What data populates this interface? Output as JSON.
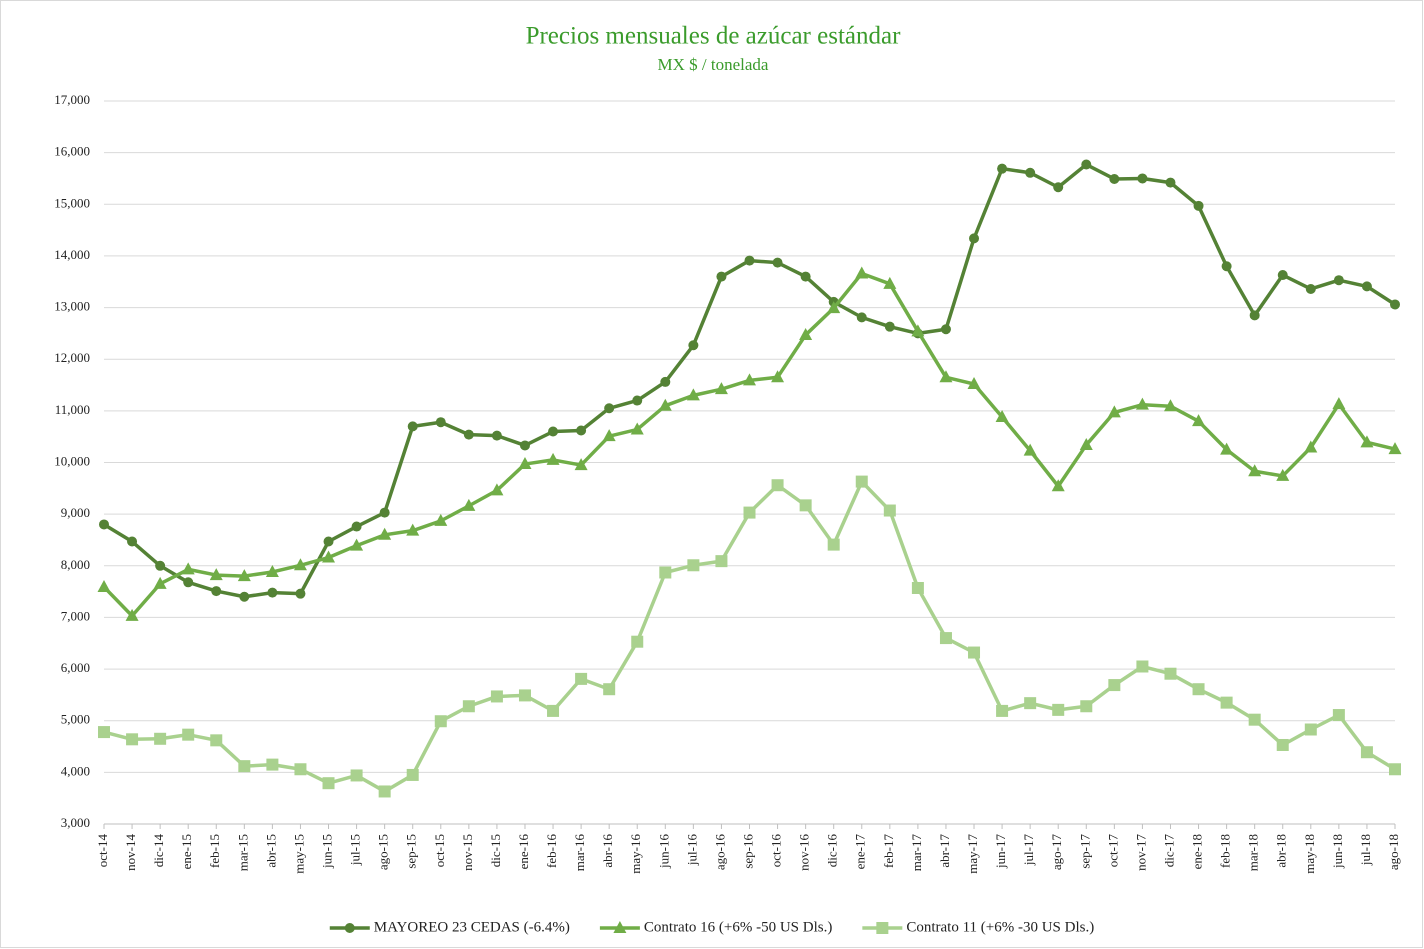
{
  "chart_data": {
    "type": "line",
    "title": "Precios mensuales de azúcar estándar",
    "subtitle": "MX $ / tonelada",
    "categories": [
      "oct-14",
      "nov-14",
      "dic-14",
      "ene-15",
      "feb-15",
      "mar-15",
      "abr-15",
      "may-15",
      "jun-15",
      "jul-15",
      "ago-15",
      "sep-15",
      "oct-15",
      "nov-15",
      "dic-15",
      "ene-16",
      "feb-16",
      "mar-16",
      "abr-16",
      "may-16",
      "jun-16",
      "jul-16",
      "ago-16",
      "sep-16",
      "oct-16",
      "nov-16",
      "dic-16",
      "ene-17",
      "feb-17",
      "mar-17",
      "abr-17",
      "may-17",
      "jun-17",
      "jul-17",
      "ago-17",
      "sep-17",
      "oct-17",
      "nov-17",
      "dic-17",
      "ene-18",
      "feb-18",
      "mar-18",
      "abr-18",
      "may-18",
      "jun-18",
      "jul-18",
      "ago-18"
    ],
    "series": [
      {
        "name": "MAYOREO 23 CEDAS (-6.4%)",
        "color": "#548235",
        "marker": "circle",
        "values": [
          8800,
          8470,
          8000,
          7680,
          7510,
          7400,
          7480,
          7460,
          8470,
          8760,
          9030,
          10700,
          10780,
          10540,
          10520,
          10330,
          10600,
          10620,
          11050,
          11200,
          11560,
          12270,
          13600,
          13910,
          13870,
          13600,
          13110,
          12810,
          12630,
          12500,
          12580,
          14340,
          15690,
          15610,
          15330,
          15770,
          15490,
          15500,
          15420,
          14970,
          13800,
          12850,
          13630,
          13360,
          13530,
          13410,
          13060
        ]
      },
      {
        "name": "Contrato 16 (+6% -50 US Dls.)",
        "color": "#70ad47",
        "marker": "triangle",
        "values": [
          7590,
          7030,
          7650,
          7930,
          7820,
          7800,
          7880,
          8010,
          8160,
          8390,
          8600,
          8680,
          8870,
          9160,
          9460,
          9970,
          10050,
          9950,
          10510,
          10640,
          11100,
          11300,
          11420,
          11590,
          11650,
          12470,
          12990,
          13660,
          13460,
          12540,
          11650,
          11520,
          10880,
          10230,
          9540,
          10340,
          10970,
          11120,
          11090,
          10800,
          10250,
          9830,
          9740,
          10290,
          11130,
          10390,
          10260
        ]
      },
      {
        "name": "Contrato 11 (+6% -30 US Dls.)",
        "color": "#a9d18e",
        "marker": "square",
        "values": [
          4780,
          4640,
          4650,
          4730,
          4620,
          4120,
          4150,
          4060,
          3790,
          3940,
          3630,
          3950,
          4990,
          5280,
          5470,
          5490,
          5190,
          5810,
          5610,
          6530,
          7870,
          8010,
          8090,
          9030,
          9560,
          9170,
          8410,
          9630,
          9070,
          7570,
          6600,
          6320,
          5190,
          5340,
          5210,
          5280,
          5690,
          6050,
          5910,
          5610,
          5350,
          5020,
          4530,
          4830,
          5110,
          4390,
          4060
        ]
      }
    ],
    "ylim": [
      3000,
      17000
    ],
    "yticks": [
      {
        "value": 3000,
        "label": "3,000"
      },
      {
        "value": 4000,
        "label": "4,000"
      },
      {
        "value": 5000,
        "label": "5,000"
      },
      {
        "value": 6000,
        "label": "6,000"
      },
      {
        "value": 7000,
        "label": "7,000"
      },
      {
        "value": 8000,
        "label": "8,000"
      },
      {
        "value": 9000,
        "label": "9,000"
      },
      {
        "value": 10000,
        "label": "10,000"
      },
      {
        "value": 11000,
        "label": "11,000"
      },
      {
        "value": 12000,
        "label": "12,000"
      },
      {
        "value": 13000,
        "label": "13,000"
      },
      {
        "value": 14000,
        "label": "14,000"
      },
      {
        "value": 15000,
        "label": "15,000"
      },
      {
        "value": 16000,
        "label": "16,000"
      },
      {
        "value": 17000,
        "label": "17,000"
      }
    ],
    "grid": true,
    "legend": "bottom"
  }
}
